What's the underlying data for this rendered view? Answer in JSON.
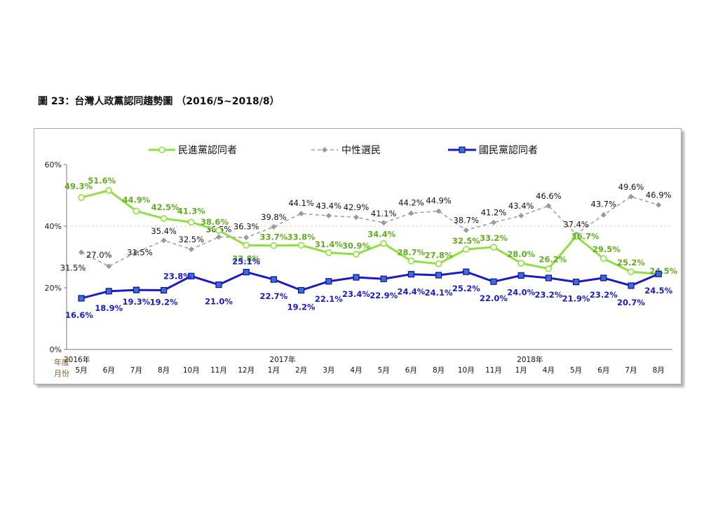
{
  "figure": {
    "caption": "圖 23：台灣人政黨認同趨勢圖 （2016/5~2018/8）"
  },
  "chart_data": {
    "type": "line",
    "ylim": [
      0,
      60
    ],
    "y_ticks": [
      "0%",
      "20%",
      "40%",
      "60%"
    ],
    "y_tick_values": [
      0,
      20,
      40,
      60
    ],
    "grid": "horizontal dashed at 40%",
    "legend_position": "top",
    "row_labels": {
      "year": "年度",
      "month": "月份"
    },
    "categories": [
      "2016/5",
      "2016/6",
      "2016/7",
      "2016/8",
      "2016/10",
      "2016/11",
      "2016/12",
      "2017/1",
      "2017/2",
      "2017/3",
      "2017/4",
      "2017/5",
      "2017/6",
      "2017/8",
      "2017/10",
      "2017/11",
      "2018/1",
      "2018/4",
      "2018/5",
      "2018/6",
      "2018/7",
      "2018/8"
    ],
    "month_labels": [
      "5月",
      "6月",
      "7月",
      "8月",
      "10月",
      "11月",
      "12月",
      "1月",
      "2月",
      "3月",
      "4月",
      "5月",
      "6月",
      "8月",
      "10月",
      "11月",
      "1月",
      "4月",
      "5月",
      "6月",
      "7月",
      "8月"
    ],
    "year_labels": [
      {
        "index": 0,
        "text": "2016年"
      },
      {
        "index": 7,
        "text": "2017年"
      },
      {
        "index": 16,
        "text": "2018年"
      }
    ],
    "series": [
      {
        "name": "民進黨認同者",
        "color": "#8fe03f",
        "label_color": "#5fae1c",
        "style": "solid-circle",
        "values": [
          49.3,
          51.6,
          44.9,
          42.5,
          41.3,
          38.6,
          33.8,
          33.7,
          33.8,
          31.4,
          30.9,
          34.4,
          28.7,
          27.8,
          32.5,
          33.2,
          28.0,
          26.2,
          36.7,
          29.5,
          25.2,
          24.5
        ],
        "labels": [
          "49.3%",
          "51.6%",
          "44.9%",
          "42.5%",
          "41.3%",
          "38.6%",
          "33.8%",
          "33.7%",
          "33.8%",
          "31.4%",
          "30.9%",
          "34.4%",
          "28.7%",
          "27.8%",
          "32.5%",
          "33.2%",
          "28.0%",
          "26.2%",
          "36.7%",
          "29.5%",
          "25.2%",
          "24.5%"
        ]
      },
      {
        "name": "中性選民",
        "color": "#a0a0a0",
        "label_color": "#111111",
        "style": "dashed-diamond",
        "values": [
          31.5,
          27.0,
          31.5,
          35.4,
          32.5,
          36.5,
          36.3,
          39.8,
          44.1,
          43.4,
          42.9,
          41.1,
          44.2,
          44.9,
          38.7,
          41.2,
          43.4,
          46.6,
          37.4,
          43.7,
          49.6,
          46.9
        ],
        "labels": [
          "31.5%",
          "27.0%",
          "31.5%",
          "35.4%",
          "32.5%",
          "36.5%",
          "36.3%",
          "39.8%",
          "44.1%",
          "43.4%",
          "42.9%",
          "41.1%",
          "44.2%",
          "44.9%",
          "38.7%",
          "41.2%",
          "43.4%",
          "46.6%",
          "37.4%",
          "43.7%",
          "49.6%",
          "46.9%"
        ]
      },
      {
        "name": "國民黨認同者",
        "color": "#1a1ac8",
        "label_color": "#1a1ac8",
        "style": "solid-square",
        "values": [
          16.6,
          18.9,
          19.3,
          19.2,
          23.8,
          21.0,
          25.1,
          22.7,
          19.2,
          22.1,
          23.4,
          22.9,
          24.4,
          24.1,
          25.2,
          22.0,
          24.0,
          23.2,
          21.9,
          23.2,
          20.7,
          24.5
        ],
        "labels": [
          "16.6%",
          "18.9%",
          "19.3%",
          "19.2%",
          "23.8%",
          "21.0%",
          "25.1%",
          "22.7%",
          "19.2%",
          "22.1%",
          "23.4%",
          "22.9%",
          "24.4%",
          "24.1%",
          "25.2%",
          "22.0%",
          "24.0%",
          "23.2%",
          "21.9%",
          "23.2%",
          "20.7%",
          "24.5%"
        ]
      }
    ]
  }
}
